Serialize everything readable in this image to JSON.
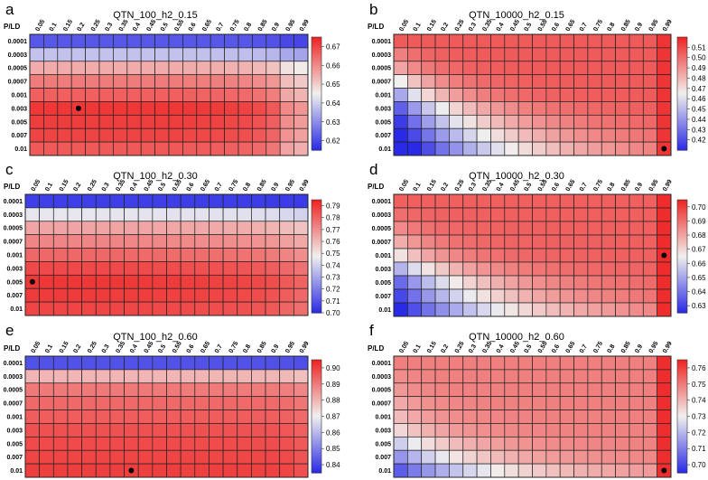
{
  "figure": {
    "corner_label": "P/LD",
    "colormap": {
      "low": "#2a2ae6",
      "mid": "#f1f0ee",
      "high": "#ee2222"
    }
  },
  "chart_data": [
    {
      "type": "heatmap",
      "panel": "a",
      "title": "QTN_100_h2_0.15",
      "x": [
        "0.05",
        "0.1",
        "0.15",
        "0.2",
        "0.25",
        "0.3",
        "0.35",
        "0.4",
        "0.45",
        "0.5",
        "0.55",
        "0.6",
        "0.65",
        "0.7",
        "0.75",
        "0.8",
        "0.85",
        "0.9",
        "0.95",
        "0.99"
      ],
      "y": [
        "0.0001",
        "0.0003",
        "0.0005",
        "0.0007",
        "0.001",
        "0.003",
        "0.005",
        "0.007",
        "0.01"
      ],
      "colorbar": {
        "range": [
          0.615,
          0.675
        ],
        "ticks": [
          "0.62",
          "0.63",
          "0.64",
          "0.65",
          "0.66",
          "0.67"
        ]
      },
      "model": {
        "type": "rows",
        "rows": [
          0.622,
          0.638,
          0.655,
          0.662,
          0.666,
          0.672,
          0.671,
          0.67,
          0.667
        ],
        "tail": [
          1.0,
          1.0,
          1.0,
          1.0,
          1.0,
          1.0,
          1.0,
          1.0,
          1.0,
          1.0,
          1.0,
          0.995,
          0.99,
          0.985,
          0.975,
          0.965,
          0.94,
          0.9,
          0.76,
          0.72
        ]
      },
      "best": {
        "x": "0.2",
        "y": "0.003"
      }
    },
    {
      "type": "heatmap",
      "panel": "b",
      "title": "QTN_10000_h2_0.15",
      "x": [
        "0.05",
        "0.1",
        "0.15",
        "0.2",
        "0.25",
        "0.3",
        "0.35",
        "0.4",
        "0.45",
        "0.5",
        "0.55",
        "0.6",
        "0.65",
        "0.7",
        "0.75",
        "0.8",
        "0.85",
        "0.9",
        "0.95",
        "0.99"
      ],
      "y": [
        "0.0001",
        "0.0003",
        "0.0005",
        "0.0007",
        "0.001",
        "0.003",
        "0.005",
        "0.007",
        "0.01"
      ],
      "colorbar": {
        "range": [
          0.41,
          0.52
        ],
        "ticks": [
          "0.42",
          "0.43",
          "0.44",
          "0.45",
          "0.46",
          "0.47",
          "0.48",
          "0.49",
          "0.50",
          "0.51"
        ]
      },
      "model": {
        "type": "grow",
        "base": 0.505,
        "drop": [
          0,
          0.01,
          0.02,
          0.04,
          0.06,
          0.08,
          0.09,
          0.1,
          0.11
        ],
        "len": [
          1,
          1.5,
          2,
          2.5,
          3,
          4,
          5,
          6,
          7
        ],
        "high": 0.515
      },
      "best": {
        "x": "0.99",
        "y": "0.01"
      }
    },
    {
      "type": "heatmap",
      "panel": "c",
      "title": "QTN_100_h2_0.30",
      "x": [
        "0.05",
        "0.1",
        "0.15",
        "0.2",
        "0.25",
        "0.3",
        "0.35",
        "0.4",
        "0.45",
        "0.5",
        "0.55",
        "0.6",
        "0.65",
        "0.7",
        "0.75",
        "0.8",
        "0.85",
        "0.9",
        "0.95",
        "0.99"
      ],
      "y": [
        "0.0001",
        "0.0003",
        "0.0005",
        "0.0007",
        "0.001",
        "0.003",
        "0.005",
        "0.007",
        "0.01"
      ],
      "colorbar": {
        "range": [
          0.7,
          0.795
        ],
        "ticks": [
          "0.70",
          "0.71",
          "0.72",
          "0.73",
          "0.74",
          "0.75",
          "0.76",
          "0.77",
          "0.78",
          "0.79"
        ]
      },
      "model": {
        "type": "rows",
        "rows": [
          0.705,
          0.745,
          0.765,
          0.772,
          0.779,
          0.786,
          0.79,
          0.789,
          0.787
        ],
        "tail": [
          1.0,
          1.0,
          1.0,
          1.0,
          1.0,
          0.999,
          0.998,
          0.996,
          0.993,
          0.99,
          0.987,
          0.984,
          0.98,
          0.975,
          0.97,
          0.965,
          0.955,
          0.94,
          0.91,
          0.88
        ]
      },
      "best": {
        "x": "0.05",
        "y": "0.005"
      }
    },
    {
      "type": "heatmap",
      "panel": "d",
      "title": "QTN_10000_h2_0.30",
      "x": [
        "0.05",
        "0.1",
        "0.15",
        "0.2",
        "0.25",
        "0.3",
        "0.35",
        "0.4",
        "0.45",
        "0.5",
        "0.55",
        "0.6",
        "0.65",
        "0.7",
        "0.75",
        "0.8",
        "0.85",
        "0.9",
        "0.95",
        "0.99"
      ],
      "y": [
        "0.0001",
        "0.0003",
        "0.0005",
        "0.0007",
        "0.001",
        "0.003",
        "0.005",
        "0.007",
        "0.01"
      ],
      "colorbar": {
        "range": [
          0.625,
          0.705
        ],
        "ticks": [
          "0.63",
          "0.64",
          "0.65",
          "0.66",
          "0.67",
          "0.68",
          "0.69",
          "0.70"
        ]
      },
      "model": {
        "type": "grow",
        "base": 0.693,
        "drop": [
          0,
          0.003,
          0.008,
          0.015,
          0.025,
          0.04,
          0.055,
          0.062,
          0.068
        ],
        "len": [
          1,
          1.5,
          2,
          2.5,
          3,
          4,
          5,
          6,
          7.5
        ],
        "high": 0.703
      },
      "best": {
        "x": "0.99",
        "y": "0.001"
      }
    },
    {
      "type": "heatmap",
      "panel": "e",
      "title": "QTN_100_h2_0.60",
      "x": [
        "0.05",
        "0.1",
        "0.15",
        "0.2",
        "0.25",
        "0.3",
        "0.35",
        "0.4",
        "0.45",
        "0.5",
        "0.55",
        "0.6",
        "0.65",
        "0.7",
        "0.75",
        "0.8",
        "0.85",
        "0.9",
        "0.95",
        "0.99"
      ],
      "y": [
        "0.0001",
        "0.0003",
        "0.0005",
        "0.0007",
        "0.001",
        "0.003",
        "0.005",
        "0.007",
        "0.01"
      ],
      "colorbar": {
        "range": [
          0.835,
          0.905
        ],
        "ticks": [
          "0.84",
          "0.85",
          "0.86",
          "0.87",
          "0.88",
          "0.89",
          "0.90"
        ]
      },
      "model": {
        "type": "rows",
        "rows": [
          0.842,
          0.88,
          0.89,
          0.893,
          0.895,
          0.897,
          0.898,
          0.899,
          0.9
        ],
        "tail": [
          1.0,
          1.0,
          1.0,
          1.0,
          1.0,
          1.0,
          1.0,
          1.0,
          1.0,
          1.0,
          1.0,
          0.999,
          0.999,
          0.998,
          0.998,
          0.997,
          0.996,
          0.994,
          0.985,
          0.955
        ]
      },
      "best": {
        "x": "0.4",
        "y": "0.01"
      }
    },
    {
      "type": "heatmap",
      "panel": "f",
      "title": "QTN_10000_h2_0.60",
      "x": [
        "0.05",
        "0.1",
        "0.15",
        "0.2",
        "0.25",
        "0.3",
        "0.35",
        "0.4",
        "0.45",
        "0.5",
        "0.55",
        "0.6",
        "0.65",
        "0.7",
        "0.75",
        "0.8",
        "0.85",
        "0.9",
        "0.95",
        "0.99"
      ],
      "y": [
        "0.0001",
        "0.0003",
        "0.0005",
        "0.0007",
        "0.001",
        "0.003",
        "0.005",
        "0.007",
        "0.01"
      ],
      "colorbar": {
        "range": [
          0.695,
          0.765
        ],
        "ticks": [
          "0.70",
          "0.71",
          "0.72",
          "0.73",
          "0.74",
          "0.75",
          "0.76"
        ]
      },
      "model": {
        "type": "grow",
        "base": 0.749,
        "drop": [
          0,
          0.002,
          0.004,
          0.007,
          0.01,
          0.015,
          0.025,
          0.035,
          0.045
        ],
        "len": [
          1,
          1.2,
          1.5,
          2,
          2.5,
          3,
          4,
          5,
          7
        ],
        "high": 0.763
      },
      "best": {
        "x": "0.99",
        "y": "0.01"
      }
    }
  ]
}
